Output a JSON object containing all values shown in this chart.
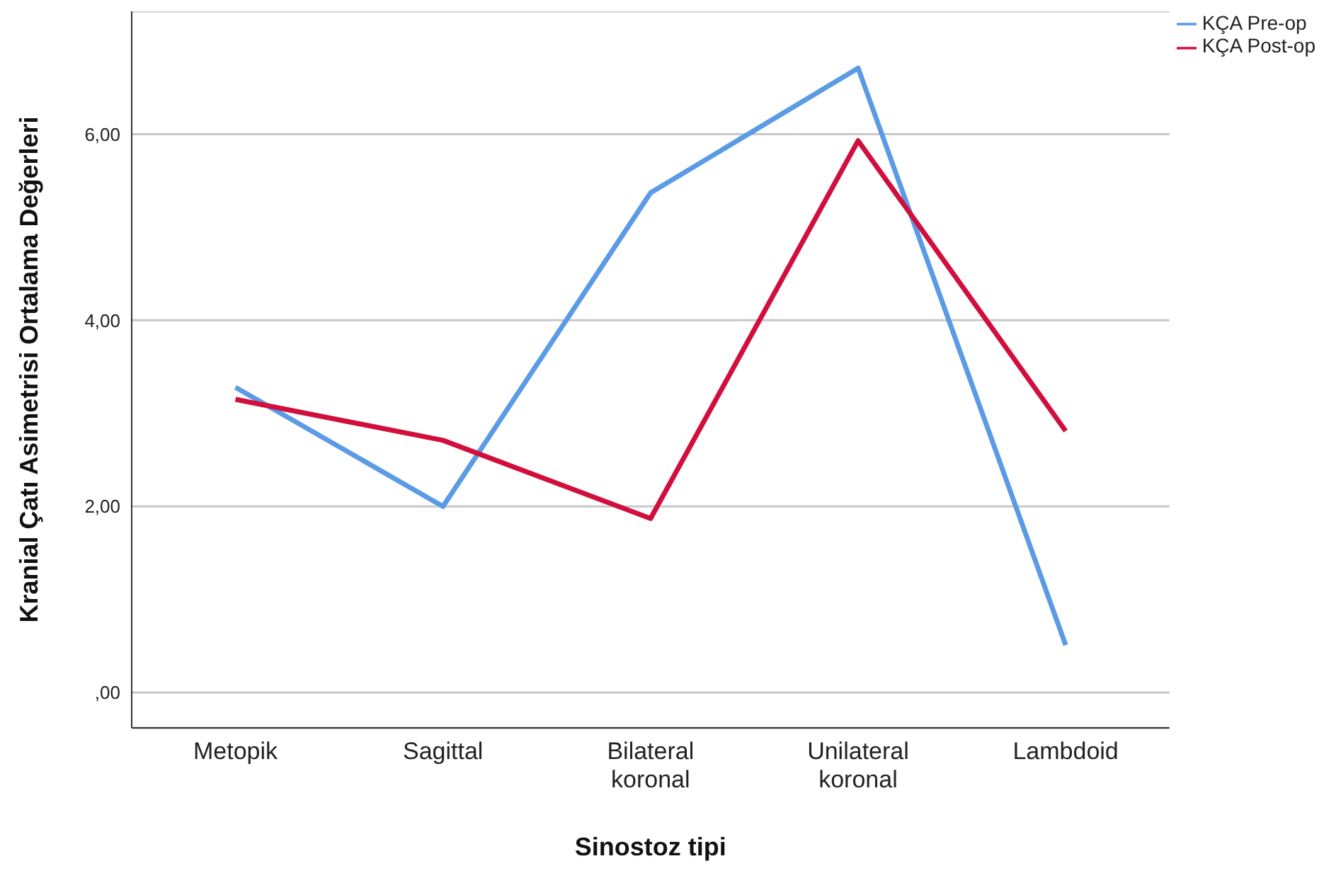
{
  "chart_data": {
    "type": "line",
    "xlabel": "Sinostoz tipi",
    "ylabel": "Kranial Çatı Asimetrisi Ortalama Değerleri",
    "categories": [
      "Metopik",
      "Sagittal",
      "Bilateral koronal",
      "Unilateral koronal",
      "Lambdoid"
    ],
    "series": [
      {
        "name": "KÇA Pre-op",
        "color": "#5b9be6",
        "values": [
          3.28,
          2.0,
          5.37,
          6.71,
          0.51
        ]
      },
      {
        "name": "KÇA Post-op",
        "color": "#d20f3c",
        "values": [
          3.15,
          2.71,
          1.87,
          5.93,
          2.81
        ]
      }
    ],
    "ylim": [
      -0.38,
      7.32
    ],
    "yticks": [
      {
        "value": 0,
        "label": ",00"
      },
      {
        "value": 2,
        "label": "2,00"
      },
      {
        "value": 4,
        "label": "4,00"
      },
      {
        "value": 6,
        "label": "6,00"
      }
    ],
    "grid": "y",
    "legend": "top right",
    "marker": "none",
    "line_style": "solid"
  }
}
